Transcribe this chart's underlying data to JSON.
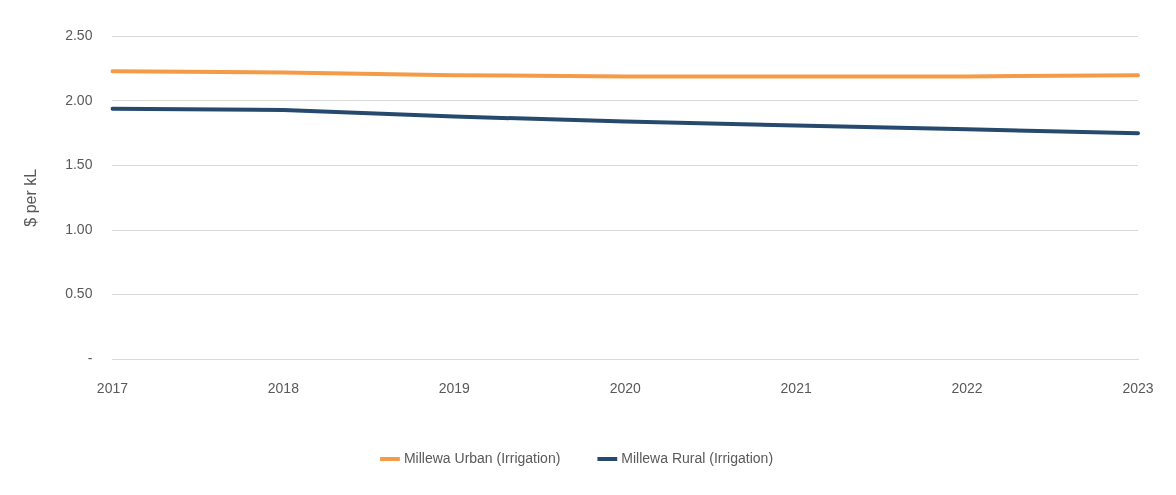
{
  "chart_data": {
    "type": "line",
    "ylabel": "$ per kL",
    "categories": [
      "2017",
      "2018",
      "2019",
      "2020",
      "2021",
      "2022",
      "2023"
    ],
    "series": [
      {
        "name": "Millewa Urban (Irrigation)",
        "color": "#f59a45",
        "values": [
          2.23,
          2.22,
          2.2,
          2.19,
          2.19,
          2.19,
          2.2
        ]
      },
      {
        "name": "Millewa Rural (Irrigation)",
        "color": "#264a6e",
        "values": [
          1.94,
          1.93,
          1.88,
          1.84,
          1.81,
          1.78,
          1.75
        ]
      }
    ],
    "ylim": [
      0,
      2.5
    ],
    "yticks": [
      {
        "value": 0,
        "label": "-"
      },
      {
        "value": 0.5,
        "label": "0.50"
      },
      {
        "value": 1,
        "label": "1.00"
      },
      {
        "value": 1.5,
        "label": "1.50"
      },
      {
        "value": 2,
        "label": "2.00"
      },
      {
        "value": 2.5,
        "label": "2.50"
      }
    ],
    "grid": "y",
    "legend": "bottom",
    "marker": "none",
    "line_style": "solid"
  }
}
